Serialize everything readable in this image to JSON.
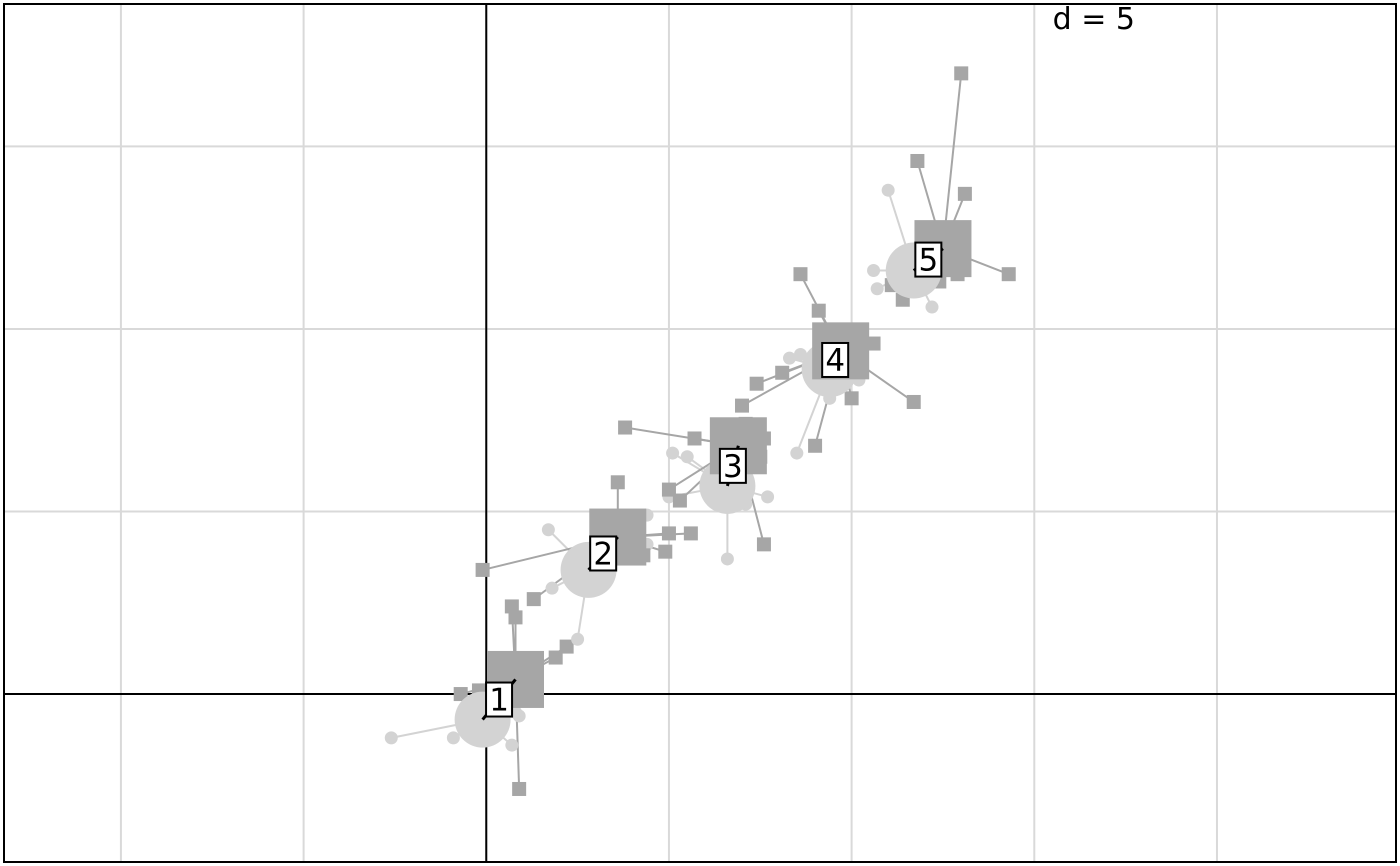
{
  "chart_data": {
    "type": "scatter",
    "scale_label": "d = 5",
    "grid": true,
    "grid_step": 5,
    "xlim": [
      -13.2,
      24.9
    ],
    "ylim": [
      -4.6,
      18.9
    ],
    "colors": {
      "background": "#ffffff",
      "grid": "#d9d9d9",
      "axis": "#000000",
      "square_points": "#a6a6a6",
      "square_links": "#a6a6a6",
      "circle_points": "#d3d3d3",
      "circle_links": "#d3d3d3",
      "centroid_link": "#000000",
      "label_box": "#ffffff"
    },
    "groups": [
      {
        "label": "1",
        "square_center": [
          0.8,
          0.4
        ],
        "circle_center": [
          -0.1,
          -0.7
        ],
        "square_points": [
          [
            0.7,
            2.4
          ],
          [
            0.8,
            2.1
          ],
          [
            2.2,
            1.3
          ],
          [
            1.9,
            1.0
          ],
          [
            0.9,
            -2.6
          ],
          [
            -0.7,
            0.0
          ],
          [
            -0.2,
            0.1
          ]
        ],
        "circle_points": [
          [
            -2.6,
            -1.2
          ],
          [
            -0.9,
            -1.2
          ],
          [
            0.7,
            -1.4
          ],
          [
            0.5,
            1.0
          ],
          [
            0.9,
            -0.6
          ],
          [
            0.8,
            -0.5
          ]
        ]
      },
      {
        "label": "2",
        "square_center": [
          3.6,
          4.3
        ],
        "circle_center": [
          2.8,
          3.4
        ],
        "square_points": [
          [
            3.6,
            5.8
          ],
          [
            -0.1,
            3.4
          ],
          [
            1.3,
            2.6
          ],
          [
            5.0,
            4.4
          ],
          [
            5.6,
            4.4
          ],
          [
            4.9,
            3.9
          ],
          [
            4.3,
            3.8
          ]
        ],
        "circle_points": [
          [
            1.7,
            4.5
          ],
          [
            1.8,
            2.9
          ],
          [
            2.5,
            2.9
          ],
          [
            2.5,
            1.5
          ],
          [
            4.4,
            4.9
          ],
          [
            4.4,
            4.1
          ],
          [
            3.0,
            3.6
          ]
        ]
      },
      {
        "label": "3",
        "square_center": [
          6.9,
          6.8
        ],
        "circle_center": [
          6.6,
          5.7
        ],
        "square_points": [
          [
            3.8,
            7.3
          ],
          [
            5.7,
            7.0
          ],
          [
            7.6,
            7.0
          ],
          [
            7.5,
            6.5
          ],
          [
            7.6,
            4.1
          ],
          [
            5.0,
            5.6
          ],
          [
            5.3,
            5.3
          ],
          [
            7.1,
            7.4
          ]
        ],
        "circle_points": [
          [
            5.1,
            6.6
          ],
          [
            5.0,
            5.4
          ],
          [
            5.5,
            6.5
          ],
          [
            6.6,
            3.7
          ],
          [
            7.7,
            5.4
          ],
          [
            7.1,
            5.2
          ]
        ]
      },
      {
        "label": "4",
        "square_center": [
          9.7,
          9.4
        ],
        "circle_center": [
          9.4,
          8.9
        ],
        "square_points": [
          [
            8.6,
            11.5
          ],
          [
            9.1,
            10.5
          ],
          [
            10.6,
            9.6
          ],
          [
            11.7,
            8.0
          ],
          [
            10.0,
            8.1
          ],
          [
            9.0,
            6.8
          ],
          [
            8.1,
            8.8
          ],
          [
            7.4,
            8.5
          ],
          [
            7.0,
            7.9
          ]
        ],
        "circle_points": [
          [
            8.3,
            9.2
          ],
          [
            8.6,
            9.3
          ],
          [
            9.0,
            8.5
          ],
          [
            9.4,
            8.1
          ],
          [
            8.5,
            6.6
          ],
          [
            10.0,
            9.1
          ],
          [
            10.2,
            8.6
          ]
        ]
      },
      {
        "label": "5",
        "square_center": [
          12.5,
          12.2
        ],
        "circle_center": [
          11.7,
          11.6
        ],
        "square_points": [
          [
            13.0,
            17.0
          ],
          [
            11.8,
            14.6
          ],
          [
            13.1,
            13.7
          ],
          [
            14.3,
            11.5
          ],
          [
            12.9,
            11.5
          ],
          [
            11.1,
            11.2
          ],
          [
            11.4,
            10.8
          ],
          [
            12.4,
            11.3
          ]
        ],
        "circle_points": [
          [
            11.0,
            13.8
          ],
          [
            10.6,
            11.6
          ],
          [
            10.7,
            11.1
          ],
          [
            12.6,
            12.4
          ],
          [
            12.2,
            10.6
          ],
          [
            12.8,
            11.6
          ]
        ]
      }
    ]
  }
}
